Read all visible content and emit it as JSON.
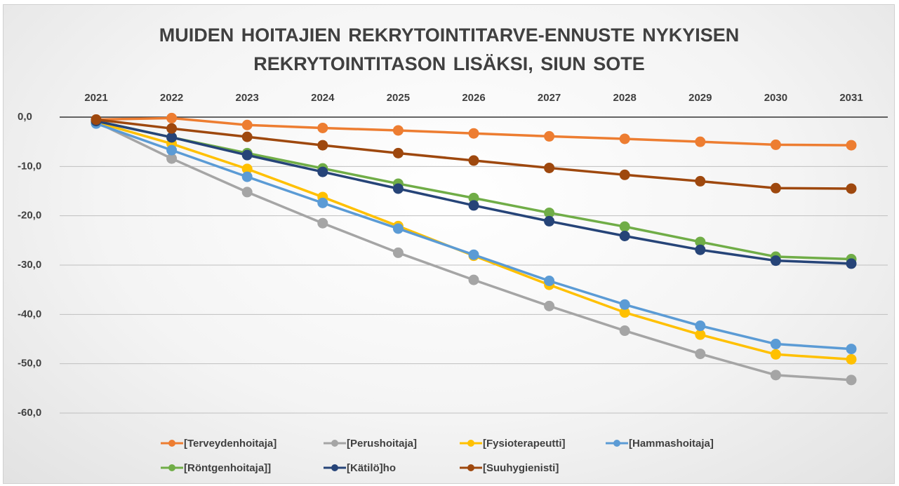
{
  "chart_data": {
    "type": "line",
    "title": "MUIDEN HOITAJIEN REKRYTOINTITARVE-ENNUSTE NYKYISEN REKRYTOINTITASON LISÄKSI, SIUN SOTE",
    "categories": [
      2021,
      2022,
      2023,
      2024,
      2025,
      2026,
      2027,
      2028,
      2029,
      2030,
      2031
    ],
    "ylim": [
      -60,
      0
    ],
    "yticks": [
      {
        "value": 0,
        "label": "0,0"
      },
      {
        "value": -10,
        "label": "-10,0"
      },
      {
        "value": -20,
        "label": "-20,0"
      },
      {
        "value": -30,
        "label": "-30,0"
      },
      {
        "value": -40,
        "label": "-40,0"
      },
      {
        "value": -50,
        "label": "-50,0"
      },
      {
        "value": -60,
        "label": "-60,0"
      }
    ],
    "grid": true,
    "legend": "bottom",
    "series": [
      {
        "name": "[Terveydenhoitaja]",
        "color": "#ED7D31",
        "values": [
          -0.5,
          -0.2,
          -1.6,
          -2.2,
          -2.7,
          -3.3,
          -3.9,
          -4.4,
          -5.0,
          -5.6,
          -5.7
        ]
      },
      {
        "name": "[Perushoitaja]",
        "color": "#A5A5A5",
        "values": [
          -1.0,
          -8.4,
          -15.2,
          -21.5,
          -27.5,
          -33.0,
          -38.3,
          -43.3,
          -48.0,
          -52.3,
          -53.3
        ]
      },
      {
        "name": "[Fysioterapeutti]",
        "color": "#FFC000",
        "values": [
          -1.0,
          -5.4,
          -10.5,
          -16.2,
          -22.1,
          -28.1,
          -34.0,
          -39.6,
          -44.1,
          -48.1,
          -49.1
        ]
      },
      {
        "name": "[Hammashoitaja]",
        "color": "#5B9BD5",
        "values": [
          -1.3,
          -6.7,
          -12.1,
          -17.4,
          -22.6,
          -27.9,
          -33.2,
          -38.0,
          -42.3,
          -46.0,
          -47.0
        ]
      },
      {
        "name": "[Röntgenhoitaja]]",
        "color": "#70AD47",
        "values": [
          -0.8,
          -4.1,
          -7.3,
          -10.4,
          -13.5,
          -16.4,
          -19.4,
          -22.2,
          -25.3,
          -28.3,
          -28.8
        ]
      },
      {
        "name": "[Kätilö]ho",
        "color": "#264478",
        "values": [
          -0.8,
          -4.1,
          -7.7,
          -11.1,
          -14.5,
          -17.9,
          -21.1,
          -24.1,
          -26.9,
          -29.1,
          -29.7
        ]
      },
      {
        "name": "[Suuhygienisti]",
        "color": "#9E480E",
        "values": [
          -0.5,
          -2.3,
          -4.0,
          -5.7,
          -7.3,
          -8.8,
          -10.3,
          -11.7,
          -13.0,
          -14.4,
          -14.5
        ]
      }
    ]
  }
}
